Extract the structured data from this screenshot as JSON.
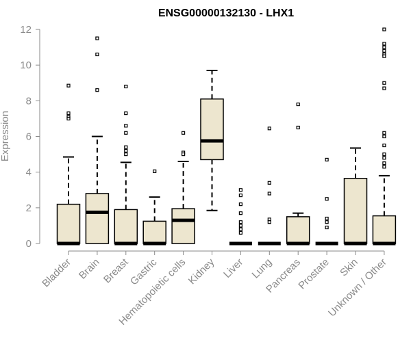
{
  "chart_data": {
    "type": "box",
    "title": "ENSG00000132130 - LHX1",
    "xlabel": "",
    "ylabel": "Expression",
    "ylim": [
      0,
      12
    ],
    "yticks": [
      0,
      2,
      4,
      6,
      8,
      10,
      12
    ],
    "grid": false,
    "box_fill": "#ede6cf",
    "categories": [
      "Bladder",
      "Brain",
      "Breast",
      "Gastric",
      "Hematopoietic cells",
      "Kidney",
      "Liver",
      "Lung",
      "Pancreas",
      "Prostate",
      "Skin",
      "Unknown / Other"
    ],
    "boxes": [
      {
        "q1": 0,
        "median": 0,
        "q3": 2.2,
        "whisker_low": 0,
        "whisker_high": 4.85,
        "outliers": [
          8.85,
          7.3,
          7.1,
          7.0
        ]
      },
      {
        "q1": 0,
        "median": 1.75,
        "q3": 2.8,
        "whisker_low": 0,
        "whisker_high": 6.0,
        "outliers": [
          11.5,
          10.6,
          8.6
        ]
      },
      {
        "q1": 0,
        "median": 0,
        "q3": 1.9,
        "whisker_low": 0,
        "whisker_high": 4.55,
        "outliers": [
          8.8,
          7.3,
          6.6,
          6.2,
          5.4,
          5.2,
          5.0
        ]
      },
      {
        "q1": 0,
        "median": 0,
        "q3": 1.25,
        "whisker_low": 0,
        "whisker_high": 2.6,
        "outliers": [
          4.05
        ]
      },
      {
        "q1": 0,
        "median": 1.3,
        "q3": 1.95,
        "whisker_low": 0,
        "whisker_high": 4.6,
        "outliers": [
          6.2,
          5.1,
          5.0
        ]
      },
      {
        "q1": 4.7,
        "median": 5.75,
        "q3": 8.1,
        "whisker_low": 1.85,
        "whisker_high": 9.7,
        "outliers": []
      },
      {
        "q1": 0,
        "median": 0,
        "q3": 0,
        "whisker_low": 0,
        "whisker_high": 0,
        "outliers": [
          3.0,
          2.7,
          2.2,
          1.7,
          1.2,
          1.0,
          0.8,
          0.6
        ]
      },
      {
        "q1": 0,
        "median": 0,
        "q3": 0,
        "whisker_low": 0,
        "whisker_high": 0,
        "outliers": [
          6.45,
          3.4,
          2.8,
          1.35,
          1.2
        ]
      },
      {
        "q1": 0,
        "median": 0,
        "q3": 1.5,
        "whisker_low": 0,
        "whisker_high": 1.7,
        "outliers": [
          7.8,
          6.5
        ]
      },
      {
        "q1": 0,
        "median": 0,
        "q3": 0,
        "whisker_low": 0,
        "whisker_high": 0,
        "outliers": [
          4.7,
          2.5,
          1.4,
          1.2,
          0.9
        ]
      },
      {
        "q1": 0,
        "median": 0,
        "q3": 3.65,
        "whisker_low": 0,
        "whisker_high": 5.35,
        "outliers": []
      },
      {
        "q1": 0,
        "median": 0,
        "q3": 1.55,
        "whisker_low": 0,
        "whisker_high": 3.8,
        "outliers": [
          12.0,
          11.2,
          11.0,
          10.8,
          10.6,
          10.5,
          9.0,
          8.7,
          6.2,
          6.0,
          5.5,
          5.0,
          4.8,
          4.5,
          4.3
        ]
      }
    ]
  }
}
